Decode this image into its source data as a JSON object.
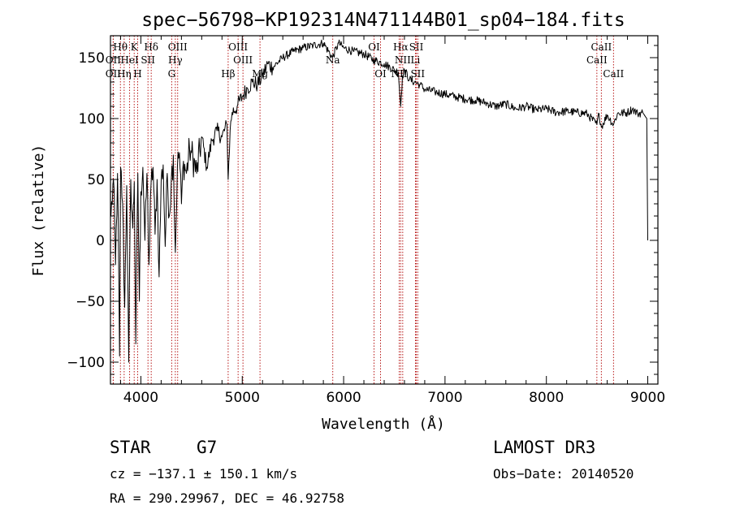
{
  "chart_data": {
    "type": "line",
    "title": "spec−56798−KP192314N471144B01_sp04−184.fits",
    "xlabel": "Wavelength (Å)",
    "ylabel": "Flux (relative)",
    "xlim": [
      3700,
      9100
    ],
    "ylim": [
      -118,
      168
    ],
    "xticks": [
      4000,
      5000,
      6000,
      7000,
      8000,
      9000
    ],
    "xtick_labels": [
      "4000",
      "5000",
      "6000",
      "7000",
      "8000",
      "9000"
    ],
    "yticks": [
      -100,
      -50,
      0,
      50,
      100,
      150
    ],
    "ytick_labels": [
      "−100",
      "−50",
      "0",
      "50",
      "100",
      "150"
    ],
    "series": [
      {
        "name": "flux",
        "x": [
          3705,
          3730,
          3750,
          3770,
          3790,
          3800,
          3820,
          3840,
          3860,
          3880,
          3900,
          3920,
          3935,
          3950,
          3970,
          3985,
          4000,
          4020,
          4040,
          4060,
          4080,
          4100,
          4120,
          4140,
          4160,
          4180,
          4200,
          4220,
          4240,
          4260,
          4280,
          4300,
          4320,
          4340,
          4360,
          4380,
          4400,
          4420,
          4450,
          4480,
          4500,
          4550,
          4600,
          4650,
          4700,
          4750,
          4800,
          4850,
          4861,
          4880,
          4900,
          4950,
          5000,
          5050,
          5100,
          5150,
          5200,
          5250,
          5300,
          5400,
          5500,
          5600,
          5700,
          5800,
          5890,
          5950,
          6000,
          6100,
          6200,
          6300,
          6400,
          6500,
          6540,
          6563,
          6580,
          6600,
          6650,
          6700,
          6750,
          6800,
          6900,
          7000,
          7100,
          7200,
          7300,
          7400,
          7500,
          7600,
          7700,
          7800,
          7900,
          8000,
          8100,
          8200,
          8300,
          8400,
          8498,
          8520,
          8542,
          8600,
          8662,
          8700,
          8800,
          8850,
          8900,
          8950,
          8990,
          9000
        ],
        "y": [
          20,
          50,
          -20,
          55,
          -95,
          60,
          30,
          -55,
          45,
          -100,
          50,
          10,
          48,
          -85,
          55,
          -50,
          40,
          60,
          0,
          55,
          -20,
          45,
          60,
          5,
          50,
          -30,
          48,
          62,
          -5,
          55,
          20,
          50,
          70,
          -10,
          60,
          72,
          30,
          65,
          55,
          75,
          72,
          55,
          85,
          60,
          82,
          90,
          85,
          95,
          50,
          90,
          105,
          110,
          118,
          125,
          130,
          128,
          135,
          145,
          142,
          150,
          155,
          158,
          160,
          162,
          150,
          162,
          158,
          155,
          153,
          148,
          145,
          140,
          138,
          110,
          135,
          140,
          132,
          130,
          128,
          124,
          122,
          120,
          118,
          116,
          115,
          113,
          110,
          112,
          108,
          110,
          107,
          108,
          105,
          106,
          105,
          104,
          95,
          104,
          93,
          103,
          95,
          104,
          105,
          108,
          104,
          105,
          100,
          0
        ]
      }
    ],
    "lines": [
      {
        "name": "Hθ",
        "x": 3798,
        "row": 0
      },
      {
        "name": "K",
        "x": 3934,
        "row": 0
      },
      {
        "name": "Hδ",
        "x": 4102,
        "row": 0
      },
      {
        "name": "OIII",
        "x": 4363,
        "row": 0
      },
      {
        "name": "OIII",
        "x": 4959,
        "row": 0
      },
      {
        "name": "OI",
        "x": 6300,
        "row": 0
      },
      {
        "name": "Hα",
        "x": 6563,
        "row": 0
      },
      {
        "name": "SII",
        "x": 6717,
        "row": 0
      },
      {
        "name": "CaII",
        "x": 8542,
        "row": 0
      },
      {
        "name": "OII",
        "x": 3727,
        "row": 1
      },
      {
        "name": "HeI",
        "x": 3889,
        "row": 1
      },
      {
        "name": "SII",
        "x": 4070,
        "row": 1
      },
      {
        "name": "Hγ",
        "x": 4340,
        "row": 1
      },
      {
        "name": "OIII",
        "x": 5007,
        "row": 1
      },
      {
        "name": "Na",
        "x": 5893,
        "row": 1
      },
      {
        "name": "NII",
        "x": 6583,
        "row": 1
      },
      {
        "name": "Li",
        "x": 6708,
        "row": 1
      },
      {
        "name": "CaII",
        "x": 8498,
        "row": 1
      },
      {
        "name": "OII",
        "x": 3727,
        "row": 2
      },
      {
        "name": "Hη",
        "x": 3835,
        "row": 2
      },
      {
        "name": "H",
        "x": 3968,
        "row": 2
      },
      {
        "name": "G",
        "x": 4304,
        "row": 2
      },
      {
        "name": "Hβ",
        "x": 4861,
        "row": 2
      },
      {
        "name": "Mg",
        "x": 5175,
        "row": 2
      },
      {
        "name": "OI",
        "x": 6364,
        "row": 2
      },
      {
        "name": "NII",
        "x": 6548,
        "row": 2
      },
      {
        "name": "SII",
        "x": 6731,
        "row": 2
      },
      {
        "name": "CaII",
        "x": 8662,
        "row": 2
      }
    ]
  },
  "info": {
    "class": "STAR",
    "subclass": "G7",
    "survey": "LAMOST DR3",
    "cz": "cz = −137.1 ± 150.1 km/s",
    "obs_date": "Obs−Date: 20140520",
    "coords": "RA = 290.29967, DEC =  46.92758"
  },
  "colors": {
    "spectrum": "#000000",
    "line_markers": "#b00000",
    "axes": "#000000"
  }
}
